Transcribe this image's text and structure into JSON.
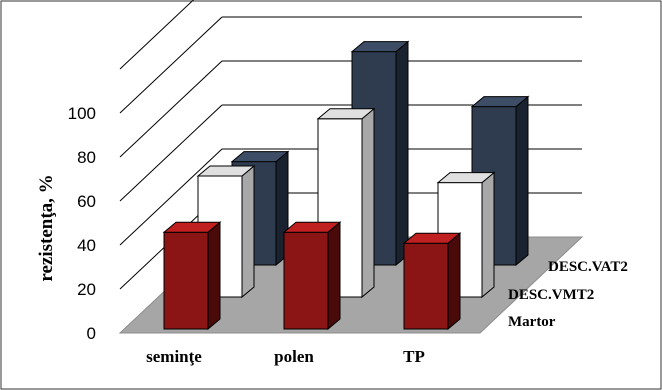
{
  "chart_data": {
    "type": "bar",
    "subtype": "3d-clustered-depth",
    "title": "",
    "ylabel": "rezistenţa, %",
    "xlabel": "",
    "ylim": [
      0,
      100
    ],
    "yticks": [
      0,
      20,
      40,
      60,
      80,
      100
    ],
    "categories": [
      "seminţe",
      "polen",
      "TP"
    ],
    "series": [
      {
        "name": "Martor",
        "values": [
          44,
          44,
          39
        ],
        "color": "#8b1414"
      },
      {
        "name": "DESC.VMT2",
        "values": [
          55,
          81,
          52
        ],
        "color": "#ffffff"
      },
      {
        "name": "DESC.VAT2",
        "values": [
          47,
          97,
          72
        ],
        "color": "#2f3c50"
      }
    ],
    "grid": true,
    "legend": "depth-axis labels at right"
  }
}
